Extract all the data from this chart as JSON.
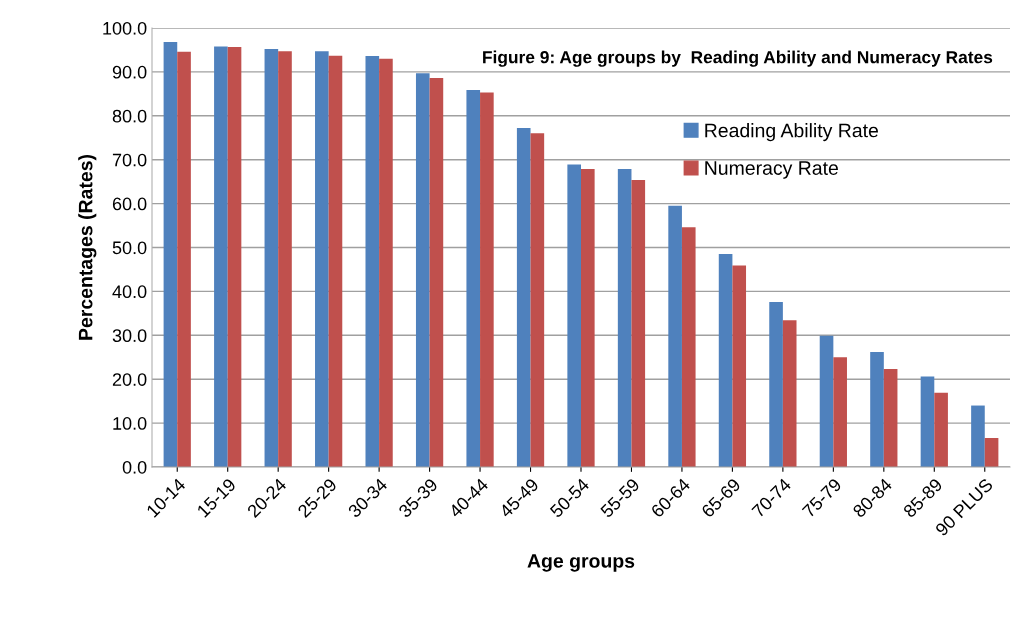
{
  "chart_data": {
    "type": "bar",
    "title": "Figure 9: Age groups by  Reading Ability and Numeracy Rates",
    "xlabel": "Age groups",
    "ylabel": "Percentages (Rates)",
    "categories": [
      "10-14",
      "15-19",
      "20-24",
      "25-29",
      "30-34",
      "35-39",
      "40-44",
      "45-49",
      "50-54",
      "55-59",
      "60-64",
      "65-69",
      "70-74",
      "75-79",
      "80-84",
      "85-89",
      "90 PLUS"
    ],
    "series": [
      {
        "name": "Reading Ability Rate",
        "color": "#4f81bd",
        "values": [
          96.8,
          95.8,
          95.2,
          94.7,
          93.6,
          89.7,
          85.9,
          77.2,
          68.9,
          67.9,
          59.5,
          48.5,
          37.6,
          29.9,
          26.2,
          20.6,
          14.0
        ]
      },
      {
        "name": "Numeracy Rate",
        "color": "#c0504d",
        "values": [
          94.6,
          95.7,
          94.7,
          93.7,
          93.0,
          88.6,
          85.3,
          76.0,
          67.9,
          65.4,
          54.6,
          45.9,
          33.4,
          25.0,
          22.3,
          16.9,
          6.6
        ]
      }
    ],
    "ylim": [
      0,
      100
    ],
    "yticks": [
      {
        "value": 0,
        "label": "0.0"
      },
      {
        "value": 10,
        "label": "10.0"
      },
      {
        "value": 20,
        "label": "20.0"
      },
      {
        "value": 30,
        "label": "30.0"
      },
      {
        "value": 40,
        "label": "40.0"
      },
      {
        "value": 50,
        "label": "50.0"
      },
      {
        "value": 60,
        "label": "60.0"
      },
      {
        "value": 70,
        "label": "70.0"
      },
      {
        "value": 80,
        "label": "80.0"
      },
      {
        "value": 90,
        "label": "90.0"
      },
      {
        "value": 100,
        "label": "100.0"
      }
    ],
    "grid": "y",
    "legend": "right"
  }
}
